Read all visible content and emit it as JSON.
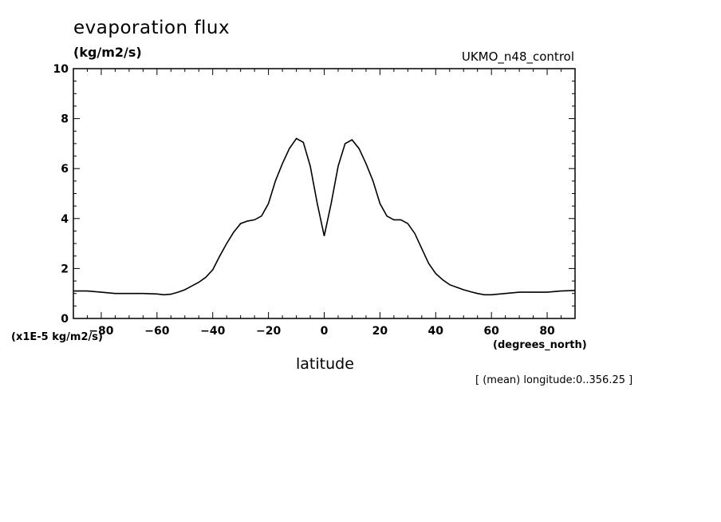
{
  "title": "evaporation flux",
  "units_label": "(kg/m2/s)",
  "run_name": "UKMO_n48_control",
  "scale_label": "(x1E-5 kg/m2/s)",
  "x_units_label": "(degrees_north)",
  "x_axis_title": "latitude",
  "footnote": "[ (mean) longitude:0..356.25 ]",
  "colors": {
    "line": "#000000",
    "background": "#ffffff"
  },
  "chart_data": {
    "type": "line",
    "title": "evaporation flux",
    "xlabel": "latitude",
    "ylabel": "(kg/m2/s)",
    "xlim": [
      -90,
      90
    ],
    "ylim": [
      0,
      10
    ],
    "x_ticks": [
      -80,
      -60,
      -40,
      -20,
      0,
      20,
      40,
      60,
      80
    ],
    "y_ticks": [
      0,
      2,
      4,
      6,
      8,
      10
    ],
    "grid": false,
    "series": [
      {
        "x": [
          -90,
          -85,
          -80,
          -75,
          -70,
          -65,
          -60,
          -57.5,
          -55,
          -52.5,
          -50,
          -47.5,
          -45,
          -42.5,
          -40,
          -37.5,
          -35,
          -32.5,
          -30,
          -27.5,
          -25,
          -22.5,
          -20,
          -17.5,
          -15,
          -12.5,
          -10,
          -7.5,
          -5,
          -2.5,
          0,
          2.5,
          5,
          7.5,
          10,
          12.5,
          15,
          17.5,
          20,
          22.5,
          25,
          27.5,
          30,
          32.5,
          35,
          37.5,
          40,
          42.5,
          45,
          47.5,
          50,
          52.5,
          55,
          57.5,
          60,
          65,
          70,
          75,
          80,
          85,
          90
        ],
        "values": [
          1.1,
          1.1,
          1.05,
          1.0,
          1.0,
          1.0,
          0.98,
          0.95,
          0.97,
          1.05,
          1.15,
          1.3,
          1.45,
          1.65,
          1.95,
          2.5,
          3.0,
          3.45,
          3.8,
          3.9,
          3.95,
          4.1,
          4.6,
          5.5,
          6.2,
          6.8,
          7.2,
          7.05,
          6.1,
          4.6,
          3.3,
          4.6,
          6.1,
          7.0,
          7.15,
          6.8,
          6.2,
          5.5,
          4.6,
          4.1,
          3.95,
          3.95,
          3.8,
          3.4,
          2.8,
          2.2,
          1.8,
          1.55,
          1.35,
          1.25,
          1.15,
          1.07,
          1.0,
          0.95,
          0.95,
          1.0,
          1.05,
          1.05,
          1.05,
          1.1,
          1.12
        ]
      }
    ]
  }
}
